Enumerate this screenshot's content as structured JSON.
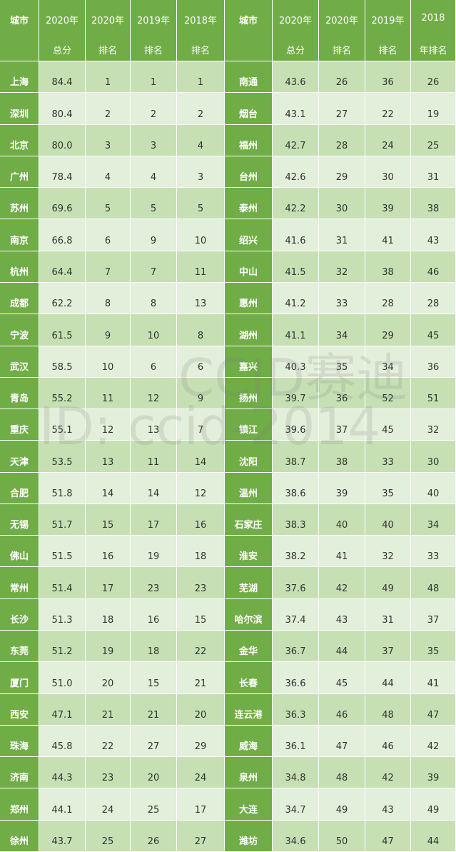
{
  "watermark": {
    "line1": "CCID赛迪",
    "line2": "ID: ccid-2014"
  },
  "colors": {
    "header": "#70ad47",
    "row_dark": "#c6e0b4",
    "row_light": "#e2efda"
  },
  "headers": [
    {
      "l1": "城市",
      "l2": ""
    },
    {
      "l1": "2020年",
      "l2": "总分"
    },
    {
      "l1": "2020年",
      "l2": "排名"
    },
    {
      "l1": "2019年",
      "l2": "排名"
    },
    {
      "l1": "2018年",
      "l2": "排名"
    },
    {
      "l1": "城市",
      "l2": ""
    },
    {
      "l1": "2020年",
      "l2": "总分"
    },
    {
      "l1": "2020年",
      "l2": "排名"
    },
    {
      "l1": "2019年",
      "l2": "排名"
    },
    {
      "l1": "2018",
      "l2": "年排名"
    }
  ],
  "chart_data": {
    "type": "table",
    "columns": [
      "城市",
      "2020年总分",
      "2020年排名",
      "2019年排名",
      "2018年排名"
    ],
    "rows": [
      [
        "上海",
        "84.4",
        "1",
        "1",
        "1"
      ],
      [
        "深圳",
        "80.4",
        "2",
        "2",
        "2"
      ],
      [
        "北京",
        "80.0",
        "3",
        "3",
        "4"
      ],
      [
        "广州",
        "78.4",
        "4",
        "4",
        "3"
      ],
      [
        "苏州",
        "69.6",
        "5",
        "5",
        "5"
      ],
      [
        "南京",
        "66.8",
        "6",
        "9",
        "10"
      ],
      [
        "杭州",
        "64.4",
        "7",
        "7",
        "11"
      ],
      [
        "成都",
        "62.2",
        "8",
        "8",
        "13"
      ],
      [
        "宁波",
        "61.5",
        "9",
        "10",
        "8"
      ],
      [
        "武汉",
        "58.5",
        "10",
        "6",
        "6"
      ],
      [
        "青岛",
        "55.2",
        "11",
        "12",
        "9"
      ],
      [
        "重庆",
        "55.1",
        "12",
        "13",
        "7"
      ],
      [
        "天津",
        "53.5",
        "13",
        "11",
        "14"
      ],
      [
        "合肥",
        "51.8",
        "14",
        "14",
        "12"
      ],
      [
        "无锡",
        "51.7",
        "15",
        "17",
        "16"
      ],
      [
        "佛山",
        "51.5",
        "16",
        "19",
        "18"
      ],
      [
        "常州",
        "51.4",
        "17",
        "23",
        "23"
      ],
      [
        "长沙",
        "51.3",
        "18",
        "16",
        "15"
      ],
      [
        "东莞",
        "51.2",
        "19",
        "18",
        "22"
      ],
      [
        "厦门",
        "51.0",
        "20",
        "15",
        "21"
      ],
      [
        "西安",
        "47.1",
        "21",
        "21",
        "20"
      ],
      [
        "珠海",
        "45.8",
        "22",
        "27",
        "29"
      ],
      [
        "济南",
        "44.3",
        "23",
        "20",
        "24"
      ],
      [
        "郑州",
        "44.1",
        "24",
        "25",
        "17"
      ],
      [
        "徐州",
        "43.7",
        "25",
        "26",
        "27"
      ],
      [
        "南通",
        "43.6",
        "26",
        "36",
        "26"
      ],
      [
        "烟台",
        "43.1",
        "27",
        "22",
        "19"
      ],
      [
        "福州",
        "42.7",
        "28",
        "24",
        "25"
      ],
      [
        "台州",
        "42.6",
        "29",
        "30",
        "31"
      ],
      [
        "泰州",
        "42.2",
        "30",
        "39",
        "38"
      ],
      [
        "绍兴",
        "41.6",
        "31",
        "41",
        "43"
      ],
      [
        "中山",
        "41.5",
        "32",
        "38",
        "46"
      ],
      [
        "惠州",
        "41.2",
        "33",
        "28",
        "28"
      ],
      [
        "湖州",
        "41.1",
        "34",
        "29",
        "45"
      ],
      [
        "嘉兴",
        "40.3",
        "35",
        "34",
        "36"
      ],
      [
        "扬州",
        "39.7",
        "36",
        "52",
        "51"
      ],
      [
        "镇江",
        "39.6",
        "37",
        "45",
        "32"
      ],
      [
        "沈阳",
        "38.7",
        "38",
        "33",
        "30"
      ],
      [
        "温州",
        "38.6",
        "39",
        "35",
        "40"
      ],
      [
        "石家庄",
        "38.3",
        "40",
        "40",
        "34"
      ],
      [
        "淮安",
        "38.2",
        "41",
        "32",
        "33"
      ],
      [
        "芜湖",
        "37.6",
        "42",
        "49",
        "48"
      ],
      [
        "哈尔滨",
        "37.4",
        "43",
        "31",
        "37"
      ],
      [
        "金华",
        "36.7",
        "44",
        "37",
        "35"
      ],
      [
        "长春",
        "36.6",
        "45",
        "44",
        "41"
      ],
      [
        "连云港",
        "36.3",
        "46",
        "48",
        "47"
      ],
      [
        "威海",
        "36.1",
        "47",
        "46",
        "42"
      ],
      [
        "泉州",
        "34.8",
        "48",
        "42",
        "39"
      ],
      [
        "大连",
        "34.7",
        "49",
        "43",
        "49"
      ],
      [
        "潍坊",
        "34.6",
        "50",
        "47",
        "44"
      ]
    ]
  }
}
